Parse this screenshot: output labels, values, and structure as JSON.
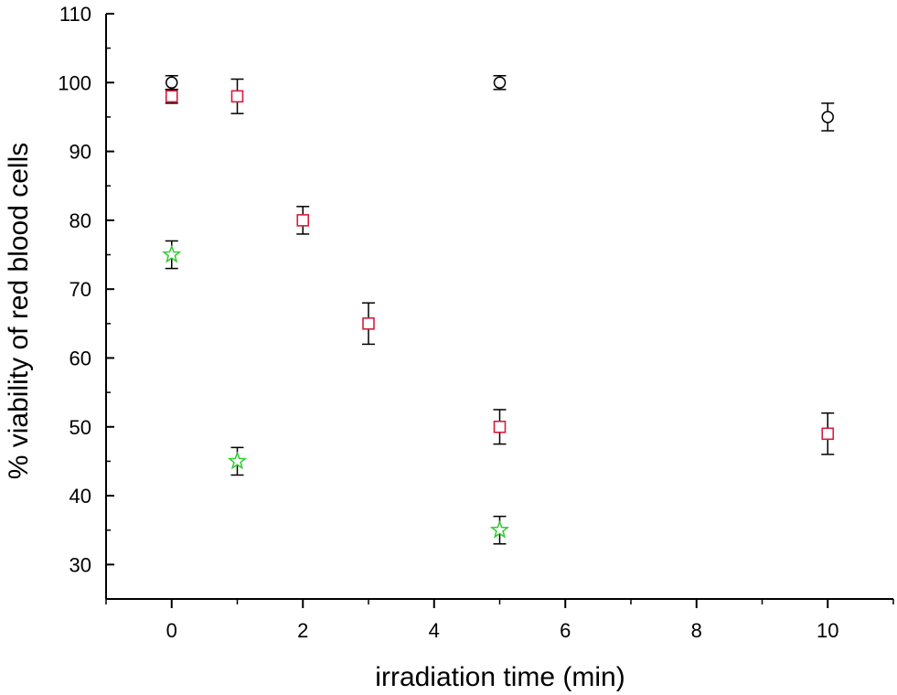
{
  "chart_data": {
    "type": "scatter",
    "title": "",
    "xlabel": "irradiation time  (min)",
    "ylabel": "% viability of red blood cells",
    "xlim": [
      -1,
      11
    ],
    "ylim": [
      25,
      110
    ],
    "x_ticks": [
      0,
      2,
      4,
      6,
      8,
      10
    ],
    "y_ticks": [
      30,
      40,
      50,
      60,
      70,
      80,
      90,
      100,
      110
    ],
    "grid": false,
    "legend": "none",
    "series": [
      {
        "marker": "circle",
        "color": "#000000",
        "points": [
          {
            "x": 0,
            "y": 100,
            "err": 1
          },
          {
            "x": 5,
            "y": 100,
            "err": 1
          },
          {
            "x": 10,
            "y": 95,
            "err": 2
          }
        ]
      },
      {
        "marker": "square",
        "color": "#d81b3c",
        "points": [
          {
            "x": 0,
            "y": 98,
            "err": 1
          },
          {
            "x": 1,
            "y": 98,
            "err": 2.5
          },
          {
            "x": 2,
            "y": 80,
            "err": 2
          },
          {
            "x": 3,
            "y": 65,
            "err": 3
          },
          {
            "x": 5,
            "y": 50,
            "err": 2.5
          },
          {
            "x": 10,
            "y": 49,
            "err": 3
          }
        ]
      },
      {
        "marker": "star",
        "color": "#2ecc2e",
        "points": [
          {
            "x": 0,
            "y": 75,
            "err": 2
          },
          {
            "x": 1,
            "y": 45,
            "err": 2
          },
          {
            "x": 5,
            "y": 35,
            "err": 2
          }
        ]
      }
    ]
  }
}
